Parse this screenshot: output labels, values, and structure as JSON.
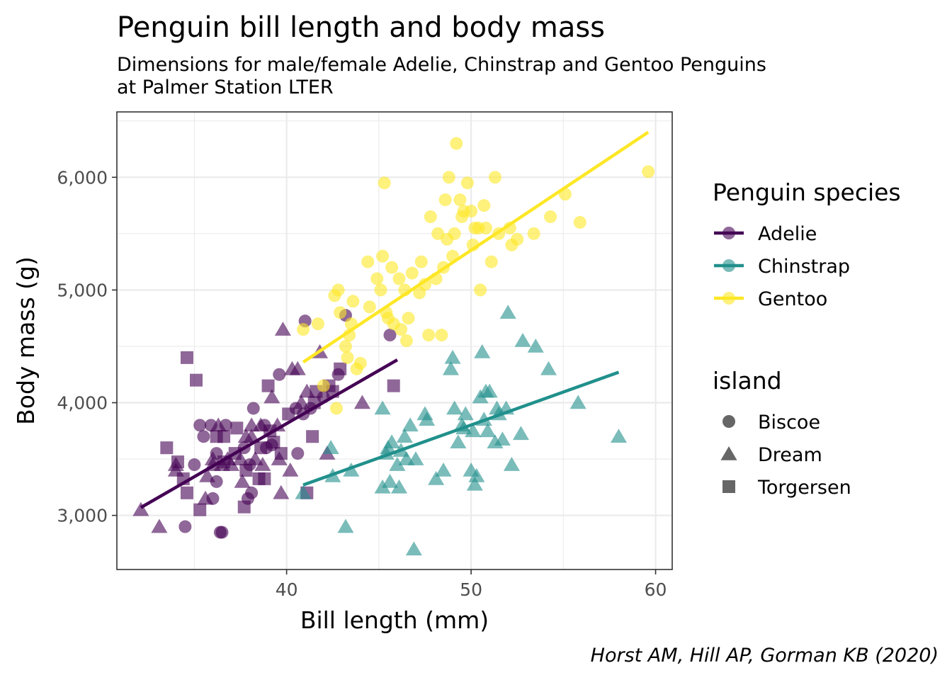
{
  "chart_data": {
    "type": "scatter",
    "title": "Penguin bill length and body mass",
    "subtitle_lines": [
      "Dimensions for male/female Adelie, Chinstrap and Gentoo Penguins",
      "at Palmer Station LTER"
    ],
    "xlabel": "Bill length (mm)",
    "ylabel": "Body mass (g)",
    "caption": "Horst AM, Hill AP, Gorman KB (2020)",
    "xlim": [
      30.8,
      60.9
    ],
    "ylim": [
      2520,
      6580
    ],
    "x_ticks": [
      40,
      50,
      60
    ],
    "x_tick_labels": [
      "40",
      "50",
      "60"
    ],
    "y_ticks": [
      3000,
      4000,
      5000,
      6000
    ],
    "y_tick_labels": [
      "3,000",
      "4,000",
      "5,000",
      "6,000"
    ],
    "grid": true,
    "legend_color": {
      "title": "Penguin species",
      "entries": [
        "Adelie",
        "Chinstrap",
        "Gentoo"
      ]
    },
    "legend_shape": {
      "title": "island",
      "entries": [
        "Biscoe",
        "Dream",
        "Torgersen"
      ]
    },
    "colors": {
      "Adelie": "#440154",
      "Chinstrap": "#21908c",
      "Gentoo": "#fde725"
    },
    "trend_lines": [
      {
        "name": "Adelie",
        "x": [
          32.1,
          46.0
        ],
        "y": [
          3070,
          4380
        ]
      },
      {
        "name": "Chinstrap",
        "x": [
          40.9,
          58.0
        ],
        "y": [
          3270,
          4270
        ]
      },
      {
        "name": "Gentoo",
        "x": [
          40.9,
          59.6
        ],
        "y": [
          4360,
          6400
        ]
      }
    ],
    "series": [
      {
        "name": "Adelie",
        "points": [
          [
            32.1,
            3050,
            "Dream"
          ],
          [
            33.1,
            2900,
            "Dream"
          ],
          [
            33.5,
            3600,
            "Torgersen"
          ],
          [
            34.0,
            3400,
            "Dream"
          ],
          [
            34.0,
            3450,
            "Dream"
          ],
          [
            34.1,
            3475,
            "Torgersen"
          ],
          [
            34.4,
            3325,
            "Torgersen"
          ],
          [
            34.5,
            2900,
            "Biscoe"
          ],
          [
            34.6,
            3200,
            "Torgersen"
          ],
          [
            34.6,
            4400,
            "Torgersen"
          ],
          [
            35.0,
            3450,
            "Biscoe"
          ],
          [
            35.1,
            4200,
            "Torgersen"
          ],
          [
            35.3,
            3800,
            "Biscoe"
          ],
          [
            35.3,
            3050,
            "Torgersen"
          ],
          [
            35.5,
            3700,
            "Biscoe"
          ],
          [
            35.6,
            3150,
            "Dream"
          ],
          [
            35.7,
            3350,
            "Dream"
          ],
          [
            35.9,
            3800,
            "Biscoe"
          ],
          [
            36.0,
            3450,
            "Dream"
          ],
          [
            36.0,
            3150,
            "Biscoe"
          ],
          [
            36.0,
            3500,
            "Dream"
          ],
          [
            36.2,
            3550,
            "Biscoe"
          ],
          [
            36.2,
            3300,
            "Biscoe"
          ],
          [
            36.2,
            3700,
            "Torgersen"
          ],
          [
            36.3,
            3800,
            "Dream"
          ],
          [
            36.4,
            2850,
            "Biscoe"
          ],
          [
            36.5,
            2850,
            "Biscoe"
          ],
          [
            36.5,
            3450,
            "Dream"
          ],
          [
            36.6,
            3700,
            "Torgersen"
          ],
          [
            36.6,
            3475,
            "Torgersen"
          ],
          [
            36.7,
            3800,
            "Biscoe"
          ],
          [
            36.8,
            3500,
            "Dream"
          ],
          [
            37.0,
            3450,
            "Dream"
          ],
          [
            37.2,
            3550,
            "Torgersen"
          ],
          [
            37.3,
            3775,
            "Torgersen"
          ],
          [
            37.5,
            3500,
            "Dream"
          ],
          [
            37.6,
            3300,
            "Dream"
          ],
          [
            37.7,
            3600,
            "Biscoe"
          ],
          [
            37.7,
            3075,
            "Torgersen"
          ],
          [
            37.8,
            3700,
            "Dream"
          ],
          [
            37.8,
            3400,
            "Torgersen"
          ],
          [
            37.9,
            3150,
            "Biscoe"
          ],
          [
            38.0,
            3450,
            "Biscoe"
          ],
          [
            38.1,
            3700,
            "Dream"
          ],
          [
            38.1,
            3200,
            "Biscoe"
          ],
          [
            38.1,
            3800,
            "Dream"
          ],
          [
            38.2,
            3950,
            "Biscoe"
          ],
          [
            38.3,
            3500,
            "Dream"
          ],
          [
            38.5,
            3325,
            "Torgersen"
          ],
          [
            38.6,
            3600,
            "Torgersen"
          ],
          [
            38.6,
            3800,
            "Dream"
          ],
          [
            38.7,
            3450,
            "Dream"
          ],
          [
            38.8,
            3800,
            "Biscoe"
          ],
          [
            38.8,
            3325,
            "Torgersen"
          ],
          [
            38.9,
            3600,
            "Biscoe"
          ],
          [
            39.0,
            4150,
            "Torgersen"
          ],
          [
            39.1,
            3750,
            "Torgersen"
          ],
          [
            39.2,
            4050,
            "Dream"
          ],
          [
            39.2,
            3625,
            "Biscoe"
          ],
          [
            39.3,
            3650,
            "Torgersen"
          ],
          [
            39.5,
            3800,
            "Dream"
          ],
          [
            39.6,
            3500,
            "Dream"
          ],
          [
            39.6,
            4250,
            "Biscoe"
          ],
          [
            39.7,
            3200,
            "Dream"
          ],
          [
            39.7,
            3550,
            "Torgersen"
          ],
          [
            39.8,
            4650,
            "Dream"
          ],
          [
            40.1,
            3900,
            "Torgersen"
          ],
          [
            40.2,
            3400,
            "Dream"
          ],
          [
            40.3,
            4300,
            "Dream"
          ],
          [
            40.5,
            3950,
            "Biscoe"
          ],
          [
            40.6,
            3550,
            "Biscoe"
          ],
          [
            40.6,
            4300,
            "Dream"
          ],
          [
            40.8,
            4000,
            "Dream"
          ],
          [
            40.9,
            3900,
            "Biscoe"
          ],
          [
            41.0,
            4725,
            "Biscoe"
          ],
          [
            41.1,
            3200,
            "Torgersen"
          ],
          [
            41.1,
            4100,
            "Dream"
          ],
          [
            41.3,
            3950,
            "Biscoe"
          ],
          [
            41.4,
            3700,
            "Torgersen"
          ],
          [
            41.5,
            4000,
            "Torgersen"
          ],
          [
            41.6,
            4100,
            "Torgersen"
          ],
          [
            41.8,
            4450,
            "Dream"
          ],
          [
            42.0,
            4050,
            "Biscoe"
          ],
          [
            42.2,
            3550,
            "Dream"
          ],
          [
            42.3,
            4150,
            "Torgersen"
          ],
          [
            42.5,
            4100,
            "Torgersen"
          ],
          [
            42.8,
            4250,
            "Biscoe"
          ],
          [
            42.9,
            4300,
            "Torgersen"
          ],
          [
            43.2,
            4775,
            "Biscoe"
          ],
          [
            44.1,
            4000,
            "Dream"
          ],
          [
            45.6,
            4600,
            "Biscoe"
          ],
          [
            45.8,
            4150,
            "Torgersen"
          ]
        ]
      },
      {
        "name": "Chinstrap",
        "points": [
          [
            40.9,
            3200,
            "Dream"
          ],
          [
            42.4,
            3600,
            "Dream"
          ],
          [
            42.5,
            3350,
            "Dream"
          ],
          [
            43.2,
            2900,
            "Dream"
          ],
          [
            43.5,
            3400,
            "Dream"
          ],
          [
            45.2,
            3250,
            "Dream"
          ],
          [
            45.2,
            3950,
            "Dream"
          ],
          [
            45.4,
            3550,
            "Dream"
          ],
          [
            45.5,
            3600,
            "Dream"
          ],
          [
            45.6,
            3300,
            "Dream"
          ],
          [
            45.7,
            3650,
            "Dream"
          ],
          [
            46.0,
            3450,
            "Dream"
          ],
          [
            46.1,
            3250,
            "Dream"
          ],
          [
            46.2,
            3575,
            "Dream"
          ],
          [
            46.4,
            3700,
            "Dream"
          ],
          [
            46.5,
            3500,
            "Dream"
          ],
          [
            46.7,
            3800,
            "Dream"
          ],
          [
            46.9,
            2700,
            "Dream"
          ],
          [
            47.0,
            3500,
            "Dream"
          ],
          [
            47.5,
            3900,
            "Dream"
          ],
          [
            47.6,
            3850,
            "Dream"
          ],
          [
            48.1,
            3325,
            "Dream"
          ],
          [
            48.5,
            3400,
            "Dream"
          ],
          [
            48.9,
            4300,
            "Dream"
          ],
          [
            49.0,
            4400,
            "Dream"
          ],
          [
            49.1,
            3950,
            "Dream"
          ],
          [
            49.3,
            3650,
            "Dream"
          ],
          [
            49.5,
            3800,
            "Dream"
          ],
          [
            49.6,
            3775,
            "Dream"
          ],
          [
            49.7,
            3900,
            "Dream"
          ],
          [
            50.0,
            3400,
            "Dream"
          ],
          [
            50.1,
            3750,
            "Dream"
          ],
          [
            50.2,
            3275,
            "Dream"
          ],
          [
            50.3,
            3350,
            "Dream"
          ],
          [
            50.5,
            4050,
            "Dream"
          ],
          [
            50.6,
            4450,
            "Dream"
          ],
          [
            50.7,
            3850,
            "Dream"
          ],
          [
            50.8,
            4100,
            "Dream"
          ],
          [
            50.9,
            3750,
            "Dream"
          ],
          [
            51.0,
            4100,
            "Dream"
          ],
          [
            51.3,
            3650,
            "Dream"
          ],
          [
            51.4,
            3950,
            "Dream"
          ],
          [
            51.5,
            3900,
            "Dream"
          ],
          [
            51.7,
            3675,
            "Dream"
          ],
          [
            51.9,
            3950,
            "Dream"
          ],
          [
            52.0,
            4800,
            "Dream"
          ],
          [
            52.2,
            3450,
            "Dream"
          ],
          [
            52.7,
            3725,
            "Dream"
          ],
          [
            52.8,
            4550,
            "Dream"
          ],
          [
            53.5,
            4500,
            "Dream"
          ],
          [
            54.2,
            4300,
            "Dream"
          ],
          [
            55.8,
            4000,
            "Dream"
          ],
          [
            58.0,
            3700,
            "Dream"
          ]
        ]
      },
      {
        "name": "Gentoo",
        "points": [
          [
            40.9,
            4650,
            "Biscoe"
          ],
          [
            41.7,
            4700,
            "Biscoe"
          ],
          [
            42.0,
            4150,
            "Biscoe"
          ],
          [
            42.6,
            4950,
            "Biscoe"
          ],
          [
            42.7,
            3950,
            "Biscoe"
          ],
          [
            42.8,
            5000,
            "Biscoe"
          ],
          [
            42.9,
            4800,
            "Biscoe"
          ],
          [
            43.2,
            4500,
            "Biscoe"
          ],
          [
            43.3,
            4400,
            "Biscoe"
          ],
          [
            43.4,
            4600,
            "Biscoe"
          ],
          [
            43.5,
            4700,
            "Biscoe"
          ],
          [
            43.6,
            4900,
            "Biscoe"
          ],
          [
            43.8,
            4300,
            "Biscoe"
          ],
          [
            44.0,
            4350,
            "Biscoe"
          ],
          [
            44.4,
            5250,
            "Biscoe"
          ],
          [
            44.5,
            4850,
            "Biscoe"
          ],
          [
            44.9,
            5100,
            "Biscoe"
          ],
          [
            45.1,
            5000,
            "Biscoe"
          ],
          [
            45.2,
            5300,
            "Biscoe"
          ],
          [
            45.3,
            5950,
            "Biscoe"
          ],
          [
            45.4,
            4800,
            "Biscoe"
          ],
          [
            45.5,
            4750,
            "Biscoe"
          ],
          [
            45.7,
            5200,
            "Biscoe"
          ],
          [
            45.8,
            4700,
            "Biscoe"
          ],
          [
            46.1,
            5100,
            "Biscoe"
          ],
          [
            46.2,
            4650,
            "Biscoe"
          ],
          [
            46.4,
            5000,
            "Biscoe"
          ],
          [
            46.5,
            4550,
            "Biscoe"
          ],
          [
            46.6,
            4750,
            "Biscoe"
          ],
          [
            46.8,
            5150,
            "Biscoe"
          ],
          [
            47.2,
            4975,
            "Biscoe"
          ],
          [
            47.3,
            5250,
            "Biscoe"
          ],
          [
            47.5,
            5050,
            "Biscoe"
          ],
          [
            47.7,
            4600,
            "Biscoe"
          ],
          [
            47.8,
            5650,
            "Biscoe"
          ],
          [
            48.1,
            5100,
            "Biscoe"
          ],
          [
            48.2,
            5500,
            "Biscoe"
          ],
          [
            48.4,
            4600,
            "Biscoe"
          ],
          [
            48.5,
            5200,
            "Biscoe"
          ],
          [
            48.6,
            5800,
            "Biscoe"
          ],
          [
            48.7,
            5450,
            "Biscoe"
          ],
          [
            48.8,
            6000,
            "Biscoe"
          ],
          [
            49.0,
            5300,
            "Biscoe"
          ],
          [
            49.1,
            5500,
            "Biscoe"
          ],
          [
            49.2,
            6300,
            "Biscoe"
          ],
          [
            49.4,
            5800,
            "Biscoe"
          ],
          [
            49.5,
            5650,
            "Biscoe"
          ],
          [
            49.6,
            5700,
            "Biscoe"
          ],
          [
            49.8,
            5950,
            "Biscoe"
          ],
          [
            50.0,
            5700,
            "Biscoe"
          ],
          [
            50.1,
            5400,
            "Biscoe"
          ],
          [
            50.2,
            5550,
            "Biscoe"
          ],
          [
            50.4,
            5550,
            "Biscoe"
          ],
          [
            50.5,
            5000,
            "Biscoe"
          ],
          [
            50.7,
            5750,
            "Biscoe"
          ],
          [
            50.8,
            5550,
            "Biscoe"
          ],
          [
            51.1,
            5250,
            "Biscoe"
          ],
          [
            51.3,
            6000,
            "Biscoe"
          ],
          [
            51.5,
            5500,
            "Biscoe"
          ],
          [
            52.1,
            5550,
            "Biscoe"
          ],
          [
            52.2,
            5400,
            "Biscoe"
          ],
          [
            52.5,
            5450,
            "Biscoe"
          ],
          [
            53.4,
            5500,
            "Biscoe"
          ],
          [
            54.3,
            5650,
            "Biscoe"
          ],
          [
            55.1,
            5850,
            "Biscoe"
          ],
          [
            55.9,
            5600,
            "Biscoe"
          ],
          [
            59.6,
            6050,
            "Biscoe"
          ]
        ]
      }
    ]
  }
}
